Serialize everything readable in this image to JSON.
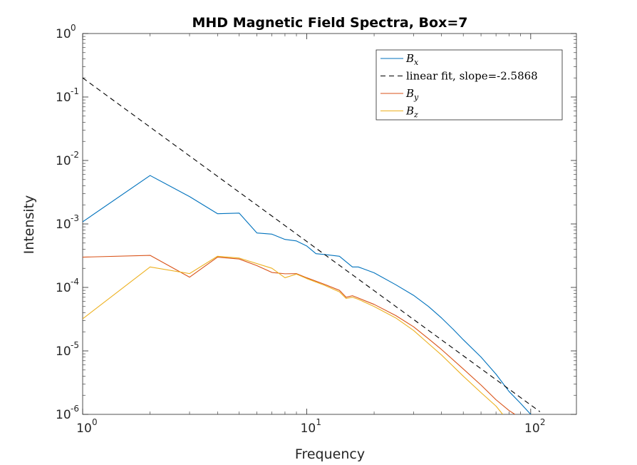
{
  "chart_data": {
    "type": "line",
    "title": "MHD Magnetic Field Spectra, Box=7",
    "xlabel": "Frequency",
    "ylabel": "Intensity",
    "xscale": "log",
    "yscale": "log",
    "xlim": [
      1,
      160
    ],
    "ylim": [
      1e-06,
      1
    ],
    "x_ticks": [
      {
        "value": 1,
        "base": "10",
        "exp": "0"
      },
      {
        "value": 10,
        "base": "10",
        "exp": "1"
      },
      {
        "value": 100,
        "base": "10",
        "exp": "2"
      }
    ],
    "y_ticks": [
      {
        "value": 1e-06,
        "base": "10",
        "exp": "-6"
      },
      {
        "value": 1e-05,
        "base": "10",
        "exp": "-5"
      },
      {
        "value": 0.0001,
        "base": "10",
        "exp": "-4"
      },
      {
        "value": 0.001,
        "base": "10",
        "exp": "-3"
      },
      {
        "value": 0.01,
        "base": "10",
        "exp": "-2"
      },
      {
        "value": 0.1,
        "base": "10",
        "exp": "-1"
      },
      {
        "value": 1,
        "base": "10",
        "exp": "0"
      }
    ],
    "grid": false,
    "legend_position": "top-right",
    "legend": [
      {
        "series": "Bx",
        "label_main": "B",
        "label_sub": "x",
        "color": "#0072BD",
        "dash": "none"
      },
      {
        "series": "fit",
        "label_text": "linear fit, slope=-2.5868",
        "color": "#000000",
        "dash": "7,5"
      },
      {
        "series": "By",
        "label_main": "B",
        "label_sub": "y",
        "color": "#D95319",
        "dash": "none"
      },
      {
        "series": "Bz",
        "label_main": "B",
        "label_sub": "z",
        "color": "#EDB120",
        "dash": "none"
      }
    ],
    "series": [
      {
        "name": "Bx",
        "color": "#0072BD",
        "points": [
          [
            1,
            0.00108
          ],
          [
            2,
            0.0058
          ],
          [
            3,
            0.0027
          ],
          [
            4,
            0.00145
          ],
          [
            5,
            0.00148
          ],
          [
            6,
            0.00072
          ],
          [
            7,
            0.00069
          ],
          [
            8,
            0.00057
          ],
          [
            9,
            0.00054
          ],
          [
            10,
            0.00045
          ],
          [
            11,
            0.00034
          ],
          [
            12,
            0.00033
          ],
          [
            14,
            0.00031
          ],
          [
            16,
            0.00021
          ],
          [
            17,
            0.00021
          ],
          [
            20,
            0.00017
          ],
          [
            25,
            0.00011
          ],
          [
            30,
            7.5e-05
          ],
          [
            35,
            5e-05
          ],
          [
            40,
            3.3e-05
          ],
          [
            45,
            2.2e-05
          ],
          [
            50,
            1.5e-05
          ],
          [
            60,
            8e-06
          ],
          [
            70,
            4.3e-06
          ],
          [
            80,
            2.3e-06
          ],
          [
            90,
            1.5e-06
          ],
          [
            100,
            1e-06
          ]
        ]
      },
      {
        "name": "fit",
        "color": "#000000",
        "dash": "7,5",
        "points": [
          [
            1,
            0.2
          ],
          [
            110,
            1.1e-06
          ]
        ]
      },
      {
        "name": "By",
        "color": "#D95319",
        "points": [
          [
            1,
            0.0003
          ],
          [
            2,
            0.00032
          ],
          [
            3,
            0.000145
          ],
          [
            4,
            0.0003
          ],
          [
            5,
            0.00028
          ],
          [
            6,
            0.00022
          ],
          [
            7,
            0.000172
          ],
          [
            8,
            0.000164
          ],
          [
            9,
            0.000165
          ],
          [
            10,
            0.000142
          ],
          [
            12,
            0.000112
          ],
          [
            14,
            9e-05
          ],
          [
            15,
            7e-05
          ],
          [
            16,
            7.4e-05
          ],
          [
            17,
            6.8e-05
          ],
          [
            20,
            5.4e-05
          ],
          [
            25,
            3.6e-05
          ],
          [
            30,
            2.4e-05
          ],
          [
            35,
            1.55e-05
          ],
          [
            40,
            1.05e-05
          ],
          [
            50,
            5.2e-06
          ],
          [
            60,
            2.9e-06
          ],
          [
            70,
            1.7e-06
          ],
          [
            80,
            1.15e-06
          ],
          [
            85,
            1e-06
          ]
        ]
      },
      {
        "name": "Bz",
        "color": "#EDB120",
        "points": [
          [
            1,
            3.2e-05
          ],
          [
            2,
            0.00021
          ],
          [
            3,
            0.000165
          ],
          [
            4,
            0.00031
          ],
          [
            5,
            0.00029
          ],
          [
            7,
            0.0002
          ],
          [
            8,
            0.000142
          ],
          [
            9,
            0.000162
          ],
          [
            10,
            0.000138
          ],
          [
            12,
            0.000108
          ],
          [
            14,
            8.5e-05
          ],
          [
            15,
            6.7e-05
          ],
          [
            16,
            7e-05
          ],
          [
            17,
            6.5e-05
          ],
          [
            20,
            5e-05
          ],
          [
            25,
            3.3e-05
          ],
          [
            30,
            2.1e-05
          ],
          [
            35,
            1.3e-05
          ],
          [
            40,
            8.6e-06
          ],
          [
            50,
            4e-06
          ],
          [
            60,
            2.2e-06
          ],
          [
            70,
            1.35e-06
          ],
          [
            75,
            1e-06
          ]
        ]
      }
    ]
  }
}
